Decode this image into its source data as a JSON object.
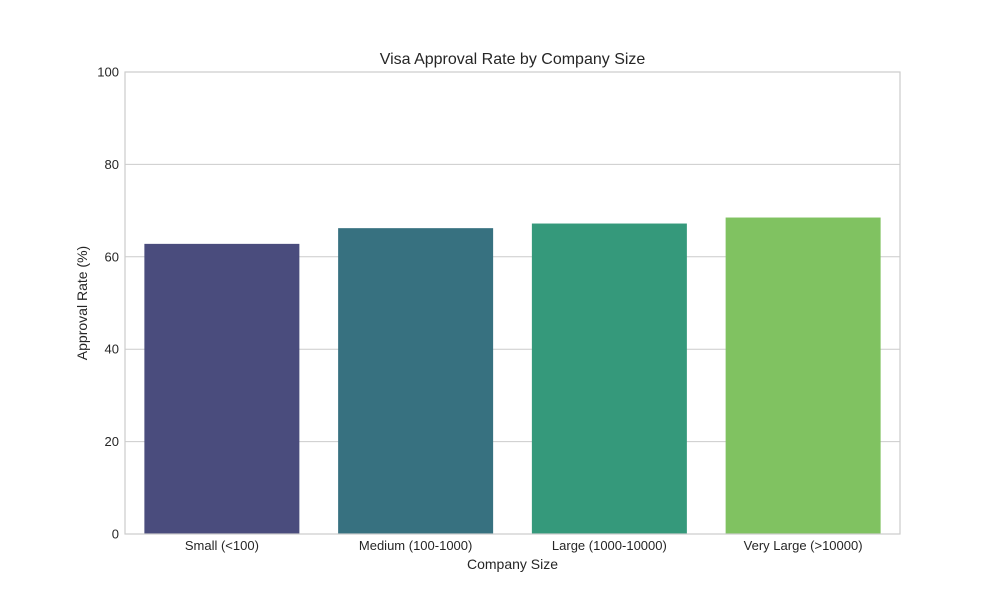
{
  "chart_data": {
    "type": "bar",
    "title": "Visa Approval Rate by Company Size",
    "xlabel": "Company Size",
    "ylabel": "Approval Rate (%)",
    "categories": [
      "Small (<100)",
      "Medium (100-1000)",
      "Large (1000-10000)",
      "Very Large (>10000)"
    ],
    "values": [
      62.8,
      66.2,
      67.2,
      68.5
    ],
    "ylim": [
      0,
      100
    ],
    "yticks": [
      "0",
      "20",
      "40",
      "60",
      "80",
      "100"
    ],
    "grid": true,
    "colors": [
      "#4a4c7d",
      "#377180",
      "#35997b",
      "#80c261"
    ]
  }
}
